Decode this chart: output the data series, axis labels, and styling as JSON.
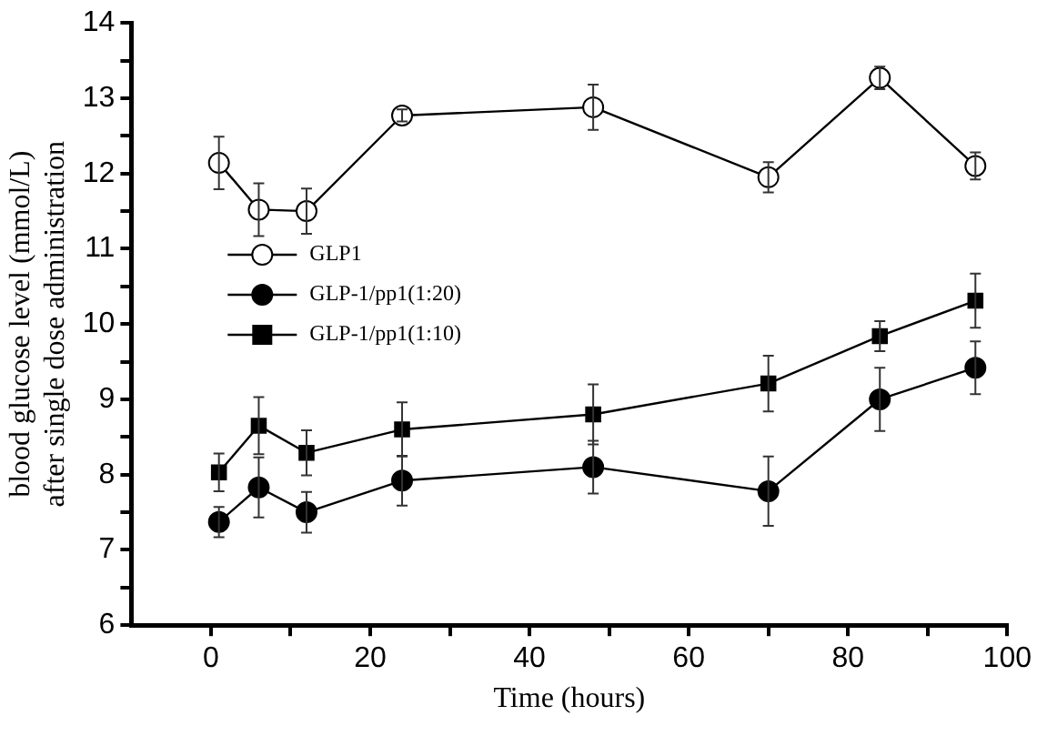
{
  "chart_data": {
    "type": "line",
    "xlabel": "Time (hours)",
    "ylabel": "blood glucose level (mmol/L)\nafter single dose administration",
    "x": [
      1,
      6,
      12,
      24,
      48,
      70,
      84,
      96
    ],
    "series": [
      {
        "name": "GLP1",
        "color": "#000000",
        "marker": "circle-open",
        "values": [
          12.14,
          11.52,
          11.5,
          12.77,
          12.88,
          11.95,
          13.27,
          12.1
        ],
        "errors": [
          0.35,
          0.35,
          0.3,
          0.08,
          0.3,
          0.2,
          0.15,
          0.18
        ]
      },
      {
        "name": "GLP-1/pp1(1:20)",
        "color": "#000000",
        "marker": "circle",
        "values": [
          7.37,
          7.83,
          7.5,
          7.92,
          8.1,
          7.78,
          9.0,
          9.42
        ],
        "errors": [
          0.2,
          0.4,
          0.27,
          0.33,
          0.35,
          0.46,
          0.42,
          0.35
        ]
      },
      {
        "name": "GLP-1/pp1(1:10)",
        "color": "#000000",
        "marker": "square",
        "values": [
          8.03,
          8.65,
          8.29,
          8.6,
          8.8,
          9.21,
          9.84,
          10.31
        ],
        "errors": [
          0.25,
          0.38,
          0.3,
          0.36,
          0.4,
          0.37,
          0.2,
          0.36
        ]
      }
    ],
    "xlim": [
      -10,
      100
    ],
    "xticks": [
      0,
      {
        "value": 10,
        "label": null
      },
      20,
      {
        "value": 30,
        "label": null
      },
      40,
      {
        "value": 50,
        "label": null
      },
      60,
      {
        "value": 70,
        "label": null
      },
      80,
      {
        "value": 90,
        "label": null
      },
      100
    ],
    "ylim": [
      6,
      14
    ],
    "yticks": [
      6,
      {
        "value": 6.5,
        "label": null
      },
      7,
      {
        "value": 7.5,
        "label": null
      },
      8,
      {
        "value": 8.5,
        "label": null
      },
      9,
      {
        "value": 9.5,
        "label": null
      },
      10,
      {
        "value": 10.5,
        "label": null
      },
      11,
      {
        "value": 11.5,
        "label": null
      },
      12,
      {
        "value": 12.5,
        "label": null
      },
      13,
      {
        "value": 13.5,
        "label": null
      },
      14
    ],
    "grid": false,
    "legend": "left",
    "line_style": "solid"
  }
}
